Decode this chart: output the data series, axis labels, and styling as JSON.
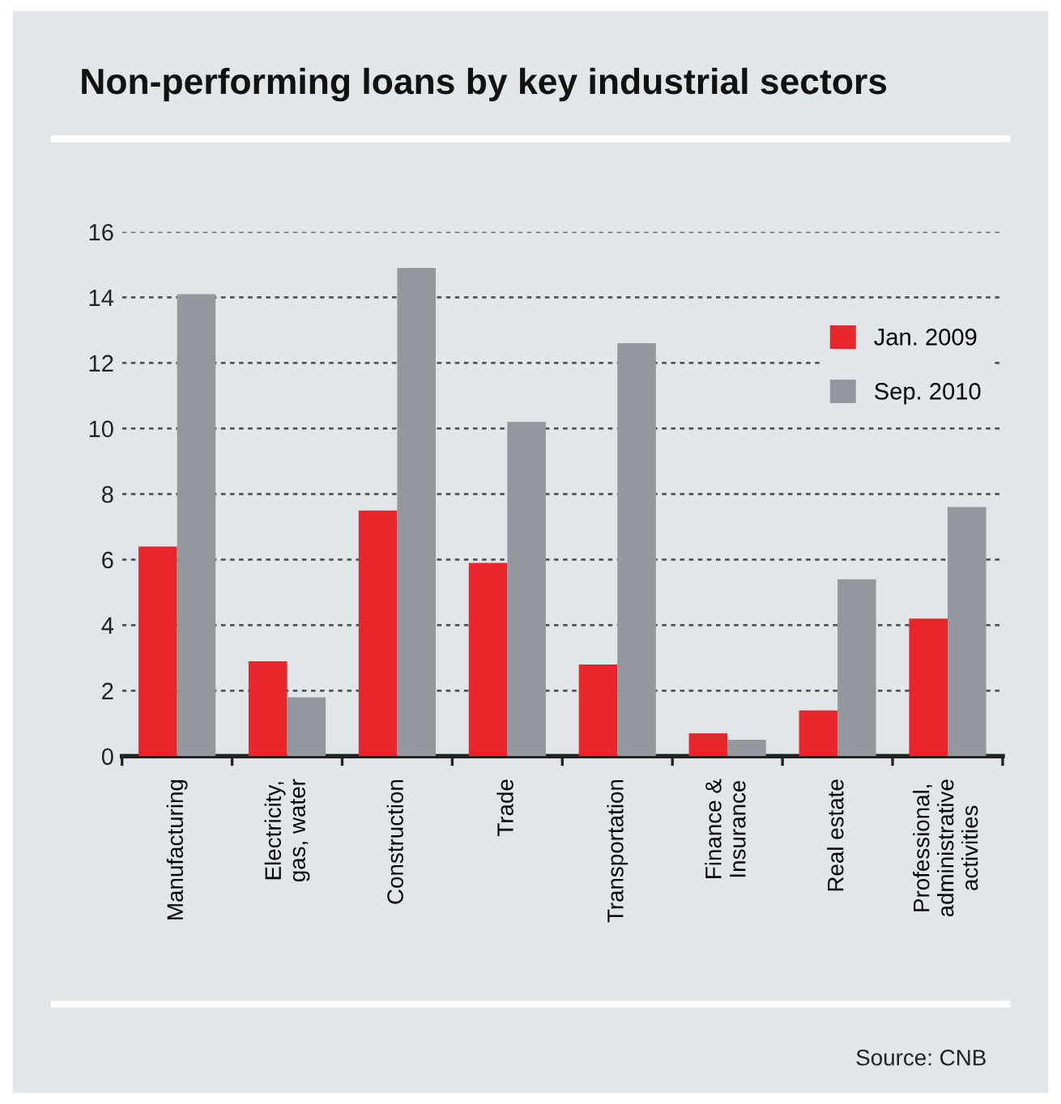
{
  "chart_data": {
    "type": "bar",
    "title": "Non-performing loans by key industrial sectors",
    "categories": [
      "Manufacturing",
      "Electricity,\ngas, water",
      "Construction",
      "Trade",
      "Transportation",
      "Finance &\nInsurance",
      "Real estate",
      "Professional,\nadministrative\nactivities"
    ],
    "series": [
      {
        "name": "Jan. 2009",
        "color": "#e8262b",
        "values": [
          6.4,
          2.9,
          7.5,
          5.9,
          2.8,
          0.7,
          1.4,
          4.2
        ]
      },
      {
        "name": "Sep. 2010",
        "color": "#93979e",
        "values": [
          14.1,
          1.8,
          14.9,
          10.2,
          12.6,
          0.5,
          5.4,
          7.6
        ]
      }
    ],
    "ylim": [
      0,
      16
    ],
    "yticks": [
      0,
      2,
      4,
      6,
      8,
      10,
      12,
      14,
      16
    ],
    "grid": "y",
    "legend": "top right",
    "annotations": [
      "Source: CNB"
    ]
  }
}
